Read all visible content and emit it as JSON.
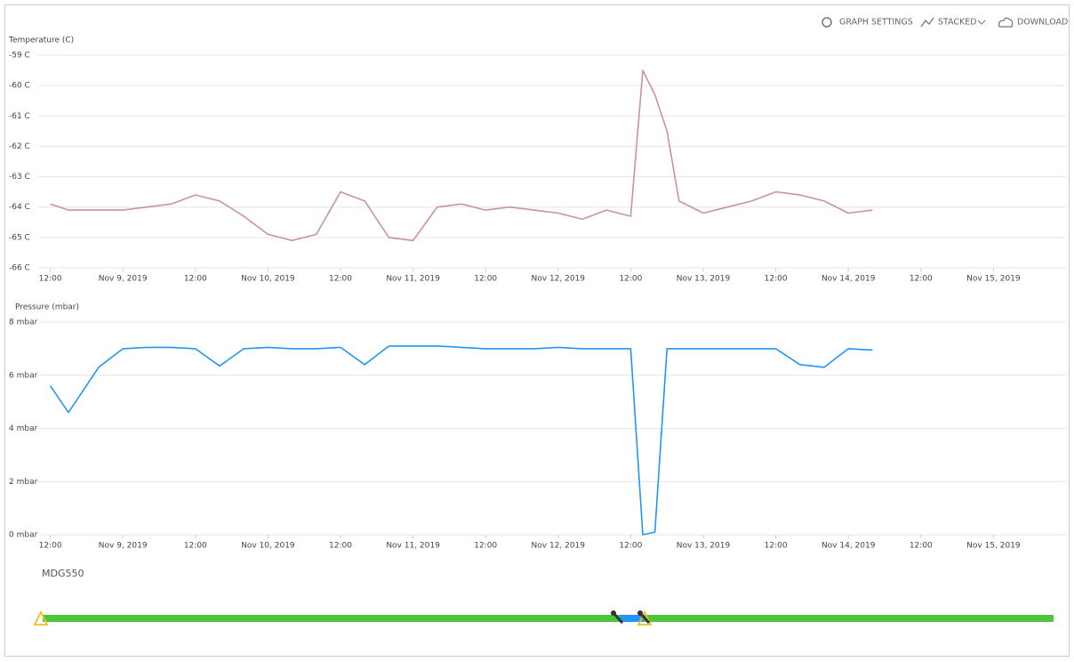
{
  "toolbar": {
    "settings": "GRAPH SETTINGS",
    "stacked": "STACKED",
    "download": "DOWNLOAD"
  },
  "status": {
    "label": "MDG550"
  },
  "chart_data": [
    {
      "type": "line",
      "y_label": "Temperature (C)",
      "color": "#c9939f",
      "grid": true,
      "x": [
        "2019-11-08T12:00",
        "2019-11-08T15:00",
        "2019-11-08T20:00",
        "2019-11-09T00:00",
        "2019-11-09T04:00",
        "2019-11-09T08:00",
        "2019-11-09T12:00",
        "2019-11-09T16:00",
        "2019-11-09T20:00",
        "2019-11-10T00:00",
        "2019-11-10T04:00",
        "2019-11-10T08:00",
        "2019-11-10T12:00",
        "2019-11-10T16:00",
        "2019-11-10T20:00",
        "2019-11-11T00:00",
        "2019-11-11T04:00",
        "2019-11-11T08:00",
        "2019-11-11T12:00",
        "2019-11-11T16:00",
        "2019-11-11T20:00",
        "2019-11-12T00:00",
        "2019-11-12T04:00",
        "2019-11-12T08:00",
        "2019-11-12T12:00",
        "2019-11-12T14:00",
        "2019-11-12T16:00",
        "2019-11-12T18:00",
        "2019-11-12T20:00",
        "2019-11-13T00:00",
        "2019-11-13T04:00",
        "2019-11-13T08:00",
        "2019-11-13T12:00",
        "2019-11-13T16:00",
        "2019-11-13T20:00",
        "2019-11-14T00:00",
        "2019-11-14T04:00"
      ],
      "values": [
        -63.9,
        -64.1,
        -64.1,
        -64.1,
        -64.0,
        -63.9,
        -63.6,
        -63.8,
        -64.3,
        -64.9,
        -65.1,
        -64.9,
        -63.5,
        -63.8,
        -65.0,
        -65.1,
        -64.0,
        -63.9,
        -64.1,
        -64.0,
        -64.1,
        -64.2,
        -64.4,
        -64.1,
        -64.3,
        -59.5,
        -60.3,
        -61.5,
        -63.8,
        -64.2,
        -64.0,
        -63.8,
        -63.5,
        -63.6,
        -63.8,
        -64.2,
        -64.1
      ],
      "xlim": [
        "2019-11-08T10:00",
        "2019-11-15T12:00"
      ],
      "xticks": [
        {
          "value": "2019-11-08T12:00",
          "label": "12:00"
        },
        {
          "value": "2019-11-09T00:00",
          "label": "Nov 9, 2019"
        },
        {
          "value": "2019-11-09T12:00",
          "label": "12:00"
        },
        {
          "value": "2019-11-10T00:00",
          "label": "Nov 10, 2019"
        },
        {
          "value": "2019-11-10T12:00",
          "label": "12:00"
        },
        {
          "value": "2019-11-11T00:00",
          "label": "Nov 11, 2019"
        },
        {
          "value": "2019-11-11T12:00",
          "label": "12:00"
        },
        {
          "value": "2019-11-12T00:00",
          "label": "Nov 12, 2019"
        },
        {
          "value": "2019-11-12T12:00",
          "label": "12:00"
        },
        {
          "value": "2019-11-13T00:00",
          "label": "Nov 13, 2019"
        },
        {
          "value": "2019-11-13T12:00",
          "label": "12:00"
        },
        {
          "value": "2019-11-14T00:00",
          "label": "Nov 14, 2019"
        },
        {
          "value": "2019-11-14T12:00",
          "label": "12:00"
        },
        {
          "value": "2019-11-15T00:00",
          "label": "Nov 15, 2019"
        }
      ],
      "ylim": [
        -66,
        -59
      ],
      "yticks": [
        {
          "value": -59,
          "label": "-59 C"
        },
        {
          "value": -60,
          "label": "-60 C"
        },
        {
          "value": -61,
          "label": "-61 C"
        },
        {
          "value": -62,
          "label": "-62 C"
        },
        {
          "value": -63,
          "label": "-63 C"
        },
        {
          "value": -64,
          "label": "-64 C"
        },
        {
          "value": -65,
          "label": "-65 C"
        },
        {
          "value": -66,
          "label": "-66 C"
        }
      ]
    },
    {
      "type": "line",
      "y_label": "Pressure (mbar)",
      "color": "#2196f3",
      "grid": true,
      "x": [
        "2019-11-08T12:00",
        "2019-11-08T15:00",
        "2019-11-08T20:00",
        "2019-11-09T00:00",
        "2019-11-09T04:00",
        "2019-11-09T08:00",
        "2019-11-09T12:00",
        "2019-11-09T16:00",
        "2019-11-09T20:00",
        "2019-11-10T00:00",
        "2019-11-10T04:00",
        "2019-11-10T08:00",
        "2019-11-10T12:00",
        "2019-11-10T16:00",
        "2019-11-10T20:00",
        "2019-11-11T00:00",
        "2019-11-11T04:00",
        "2019-11-11T08:00",
        "2019-11-11T12:00",
        "2019-11-11T16:00",
        "2019-11-11T20:00",
        "2019-11-12T00:00",
        "2019-11-12T04:00",
        "2019-11-12T08:00",
        "2019-11-12T12:00",
        "2019-11-12T14:00",
        "2019-11-12T16:00",
        "2019-11-12T18:00",
        "2019-11-12T20:00",
        "2019-11-13T00:00",
        "2019-11-13T04:00",
        "2019-11-13T08:00",
        "2019-11-13T12:00",
        "2019-11-13T16:00",
        "2019-11-13T20:00",
        "2019-11-14T00:00",
        "2019-11-14T04:00"
      ],
      "values": [
        5.6,
        4.6,
        6.3,
        7.0,
        7.05,
        7.05,
        7.0,
        6.35,
        7.0,
        7.05,
        7.0,
        7.0,
        7.05,
        6.4,
        7.1,
        7.1,
        7.1,
        7.05,
        7.0,
        7.0,
        7.0,
        7.05,
        7.0,
        7.0,
        7.0,
        0,
        0.1,
        7.0,
        7.0,
        7.0,
        7.0,
        7.0,
        7.0,
        6.4,
        6.3,
        7.0,
        6.95
      ],
      "xlim": [
        "2019-11-08T10:00",
        "2019-11-15T12:00"
      ],
      "xticks": [
        {
          "value": "2019-11-08T12:00",
          "label": "12:00"
        },
        {
          "value": "2019-11-09T00:00",
          "label": "Nov 9, 2019"
        },
        {
          "value": "2019-11-09T12:00",
          "label": "12:00"
        },
        {
          "value": "2019-11-10T00:00",
          "label": "Nov 10, 2019"
        },
        {
          "value": "2019-11-10T12:00",
          "label": "12:00"
        },
        {
          "value": "2019-11-11T00:00",
          "label": "Nov 11, 2019"
        },
        {
          "value": "2019-11-11T12:00",
          "label": "12:00"
        },
        {
          "value": "2019-11-12T00:00",
          "label": "Nov 12, 2019"
        },
        {
          "value": "2019-11-12T12:00",
          "label": "12:00"
        },
        {
          "value": "2019-11-13T00:00",
          "label": "Nov 13, 2019"
        },
        {
          "value": "2019-11-13T12:00",
          "label": "12:00"
        },
        {
          "value": "2019-11-14T00:00",
          "label": "Nov 14, 2019"
        },
        {
          "value": "2019-11-14T12:00",
          "label": "12:00"
        },
        {
          "value": "2019-11-15T00:00",
          "label": "Nov 15, 2019"
        }
      ],
      "ylim": [
        0,
        8
      ],
      "yticks": [
        {
          "value": 0,
          "label": "0 mbar"
        },
        {
          "value": 2,
          "label": "2 mbar"
        },
        {
          "value": 4,
          "label": "4 mbar"
        },
        {
          "value": 6,
          "label": "6 mbar"
        },
        {
          "value": 8,
          "label": "8 mbar"
        }
      ]
    }
  ]
}
